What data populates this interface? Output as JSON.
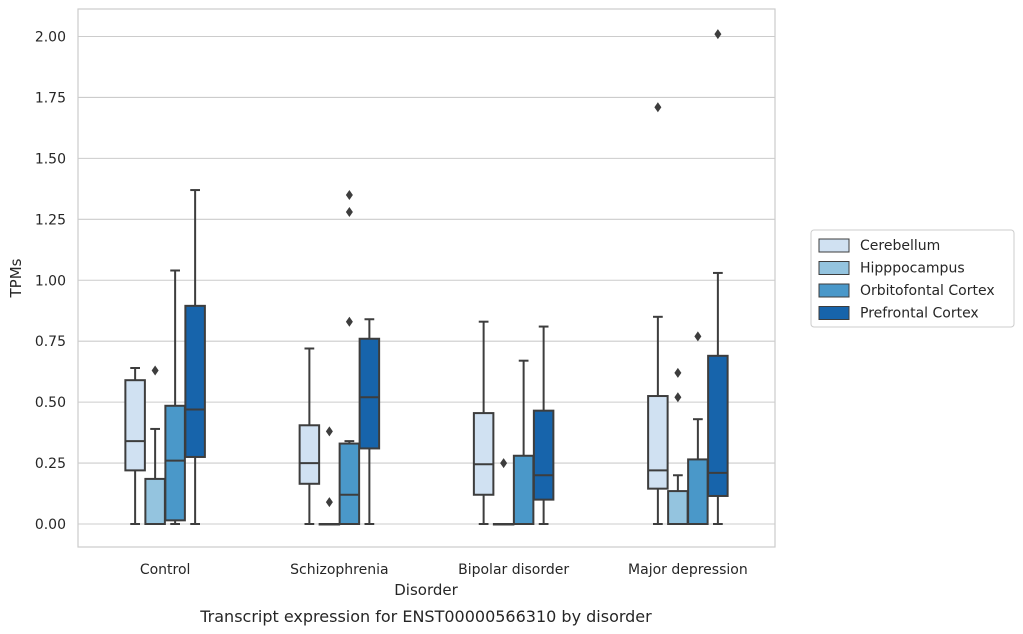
{
  "chart_data": {
    "type": "box",
    "caption": "Transcript expression for ENST00000566310 by disorder",
    "xlabel": "Disorder",
    "ylabel": "TPMs",
    "ylim": [
      -0.1,
      2.1
    ],
    "yticks": [
      0.0,
      0.25,
      0.5,
      0.75,
      1.0,
      1.25,
      1.5,
      1.75,
      2.0
    ],
    "ytick_labels": [
      "0.00",
      "0.25",
      "0.50",
      "0.75",
      "1.00",
      "1.25",
      "1.50",
      "1.75",
      "2.00"
    ],
    "grid": true,
    "legend_position": "right",
    "categories": [
      "Control",
      "Schizophrenia",
      "Bipolar disorder",
      "Major depression"
    ],
    "series": [
      {
        "name": "Cerebellum",
        "color": "#d0e1f2",
        "boxes": [
          {
            "whisker_low": 0.0,
            "q1": 0.22,
            "median": 0.34,
            "q3": 0.59,
            "whisker_high": 0.64,
            "outliers": []
          },
          {
            "whisker_low": 0.0,
            "q1": 0.165,
            "median": 0.25,
            "q3": 0.405,
            "whisker_high": 0.72,
            "outliers": []
          },
          {
            "whisker_low": 0.0,
            "q1": 0.12,
            "median": 0.245,
            "q3": 0.455,
            "whisker_high": 0.83,
            "outliers": []
          },
          {
            "whisker_low": 0.0,
            "q1": 0.145,
            "median": 0.22,
            "q3": 0.525,
            "whisker_high": 0.85,
            "outliers": [
              1.71
            ]
          }
        ]
      },
      {
        "name": "Hipppocampus",
        "color": "#94c4df",
        "boxes": [
          {
            "whisker_low": 0.0,
            "q1": 0.0,
            "median": 0.0,
            "q3": 0.185,
            "whisker_high": 0.39,
            "outliers": [
              0.63
            ]
          },
          {
            "whisker_low": 0.0,
            "q1": 0.0,
            "median": 0.0,
            "q3": 0.0,
            "whisker_high": 0.0,
            "outliers": [
              0.09,
              0.38
            ]
          },
          {
            "whisker_low": 0.0,
            "q1": 0.0,
            "median": 0.0,
            "q3": 0.0,
            "whisker_high": 0.0,
            "outliers": [
              0.25
            ]
          },
          {
            "whisker_low": 0.0,
            "q1": 0.0,
            "median": 0.0,
            "q3": 0.135,
            "whisker_high": 0.2,
            "outliers": [
              0.52,
              0.62
            ]
          }
        ]
      },
      {
        "name": "Orbitofontal Cortex",
        "color": "#4a98c9",
        "boxes": [
          {
            "whisker_low": 0.0,
            "q1": 0.015,
            "median": 0.26,
            "q3": 0.485,
            "whisker_high": 1.04,
            "outliers": []
          },
          {
            "whisker_low": 0.0,
            "q1": 0.0,
            "median": 0.12,
            "q3": 0.33,
            "whisker_high": 0.34,
            "outliers": [
              0.83,
              1.28,
              1.35
            ]
          },
          {
            "whisker_low": 0.0,
            "q1": 0.0,
            "median": 0.0,
            "q3": 0.28,
            "whisker_high": 0.67,
            "outliers": []
          },
          {
            "whisker_low": 0.0,
            "q1": 0.0,
            "median": 0.0,
            "q3": 0.265,
            "whisker_high": 0.43,
            "outliers": [
              0.77
            ]
          }
        ]
      },
      {
        "name": "Prefrontal Cortex",
        "color": "#1764ab",
        "boxes": [
          {
            "whisker_low": 0.0,
            "q1": 0.275,
            "median": 0.47,
            "q3": 0.895,
            "whisker_high": 1.37,
            "outliers": []
          },
          {
            "whisker_low": 0.0,
            "q1": 0.31,
            "median": 0.52,
            "q3": 0.76,
            "whisker_high": 0.84,
            "outliers": []
          },
          {
            "whisker_low": 0.0,
            "q1": 0.1,
            "median": 0.2,
            "q3": 0.465,
            "whisker_high": 0.81,
            "outliers": []
          },
          {
            "whisker_low": 0.0,
            "q1": 0.115,
            "median": 0.21,
            "q3": 0.69,
            "whisker_high": 1.03,
            "outliers": [
              2.01
            ]
          }
        ]
      }
    ]
  }
}
